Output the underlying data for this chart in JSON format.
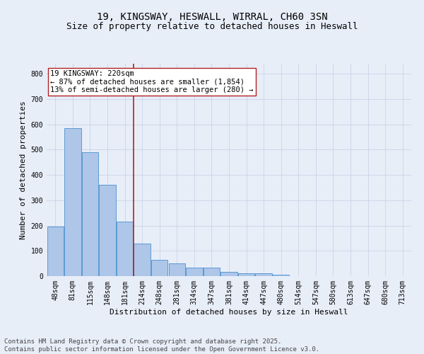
{
  "title_line1": "19, KINGSWAY, HESWALL, WIRRAL, CH60 3SN",
  "title_line2": "Size of property relative to detached houses in Heswall",
  "xlabel": "Distribution of detached houses by size in Heswall",
  "ylabel": "Number of detached properties",
  "categories": [
    "48sqm",
    "81sqm",
    "115sqm",
    "148sqm",
    "181sqm",
    "214sqm",
    "248sqm",
    "281sqm",
    "314sqm",
    "347sqm",
    "381sqm",
    "414sqm",
    "447sqm",
    "480sqm",
    "514sqm",
    "547sqm",
    "580sqm",
    "613sqm",
    "647sqm",
    "680sqm",
    "713sqm"
  ],
  "values": [
    195,
    585,
    490,
    360,
    215,
    130,
    65,
    50,
    35,
    35,
    17,
    10,
    10,
    5,
    0,
    0,
    0,
    0,
    0,
    0,
    0
  ],
  "bar_color": "#aec6e8",
  "bar_edge_color": "#5b9bd5",
  "bar_width": 0.95,
  "property_line_index": 5,
  "property_line_color": "#b22222",
  "annotation_text": "19 KINGSWAY: 220sqm\n← 87% of detached houses are smaller (1,854)\n13% of semi-detached houses are larger (280) →",
  "annotation_box_color": "white",
  "annotation_box_edge_color": "#b22222",
  "ylim": [
    0,
    840
  ],
  "yticks": [
    0,
    100,
    200,
    300,
    400,
    500,
    600,
    700,
    800
  ],
  "grid_color": "#c8d4e8",
  "bg_color": "#e8eef8",
  "footer_text": "Contains HM Land Registry data © Crown copyright and database right 2025.\nContains public sector information licensed under the Open Government Licence v3.0.",
  "title_fontsize": 10,
  "subtitle_fontsize": 9,
  "axis_label_fontsize": 8,
  "tick_fontsize": 7,
  "annotation_fontsize": 7.5,
  "footer_fontsize": 6.5
}
